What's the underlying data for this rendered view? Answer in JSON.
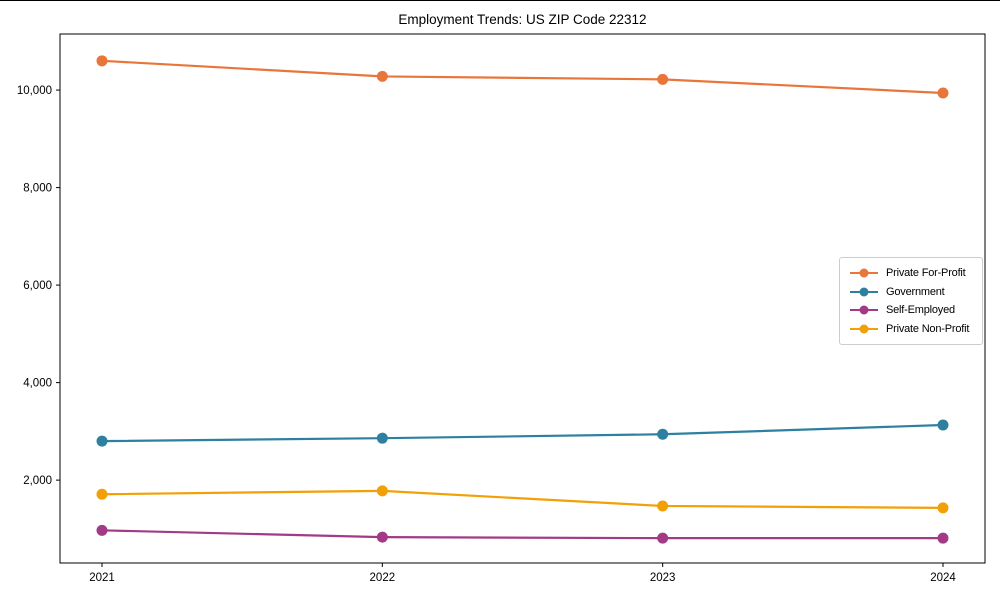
{
  "figure": {
    "title": "Employment Trends: US ZIP Code 22312"
  },
  "chart_data": {
    "type": "line",
    "title": "Employment Trends: US ZIP Code 22312",
    "xlabel": "",
    "ylabel": "",
    "grid": false,
    "legend_position": "center-right",
    "marker": "circle",
    "x_categories": [
      "2021",
      "2022",
      "2023",
      "2024"
    ],
    "series": [
      {
        "name": "Private For-Profit",
        "color": "#E8763B",
        "values": [
          10600,
          10280,
          10220,
          9940
        ]
      },
      {
        "name": "Government",
        "color": "#2E80A0",
        "values": [
          2800,
          2860,
          2940,
          3130
        ]
      },
      {
        "name": "Self-Employed",
        "color": "#A23A86",
        "values": [
          970,
          830,
          810,
          810
        ]
      },
      {
        "name": "Private Non-Profit",
        "color": "#F2A007",
        "values": [
          1710,
          1780,
          1470,
          1430
        ]
      }
    ],
    "ylim": [
      300,
      11150
    ],
    "y_ticks": {
      "values": [
        2000,
        4000,
        6000,
        8000,
        10000
      ],
      "labels": [
        "2,000",
        "4,000",
        "6,000",
        "8,000",
        "10,000"
      ]
    }
  },
  "colors": {
    "background": "#ffffff",
    "text": "#000000",
    "spine": "#000000",
    "legend_border": "#cccccc"
  }
}
